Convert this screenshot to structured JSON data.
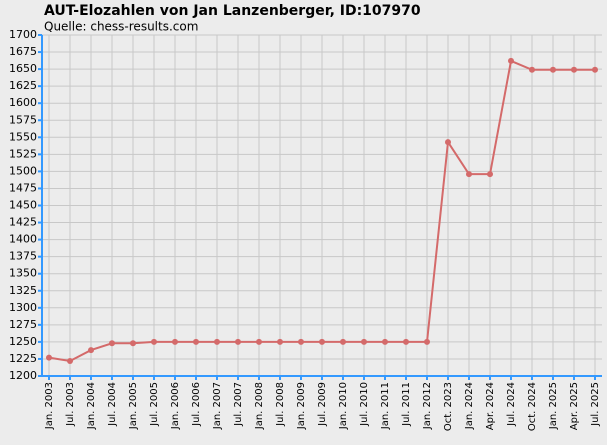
{
  "chart_data": {
    "type": "line",
    "title": "AUT-Elozahlen von Jan Lanzenberger, ID:107970",
    "subtitle": "Quelle: chess-results.com",
    "categories": [
      "Jan. 2003",
      "Jul. 2003",
      "Jan. 2004",
      "Jul. 2004",
      "Jan. 2005",
      "Jul. 2005",
      "Jan. 2006",
      "Jul. 2006",
      "Jan. 2007",
      "Jul. 2007",
      "Jan. 2008",
      "Jul. 2008",
      "Jan. 2009",
      "Jul. 2009",
      "Jan. 2010",
      "Jul. 2010",
      "Jan. 2011",
      "Jul. 2011",
      "Jan. 2012",
      "Oct. 2023",
      "Jan. 2024",
      "Apr. 2024",
      "Jul. 2024",
      "Oct. 2024",
      "Jan. 2025",
      "Apr. 2025",
      "Jul. 2025"
    ],
    "series": [
      {
        "color": "#d46a6a",
        "values": [
          1227,
          1222,
          1238,
          1248,
          1248,
          1250,
          1250,
          1250,
          1250,
          1250,
          1250,
          1250,
          1250,
          1250,
          1250,
          1250,
          1250,
          1250,
          1250,
          1543,
          1496,
          1496,
          1662,
          1649,
          1649,
          1649,
          1649
        ]
      }
    ],
    "ylim": [
      1200,
      1700
    ],
    "yticks": [
      1200,
      1225,
      1250,
      1275,
      1300,
      1325,
      1350,
      1375,
      1400,
      1425,
      1450,
      1475,
      1500,
      1525,
      1550,
      1575,
      1600,
      1625,
      1650,
      1675,
      1700
    ],
    "grid": true
  }
}
